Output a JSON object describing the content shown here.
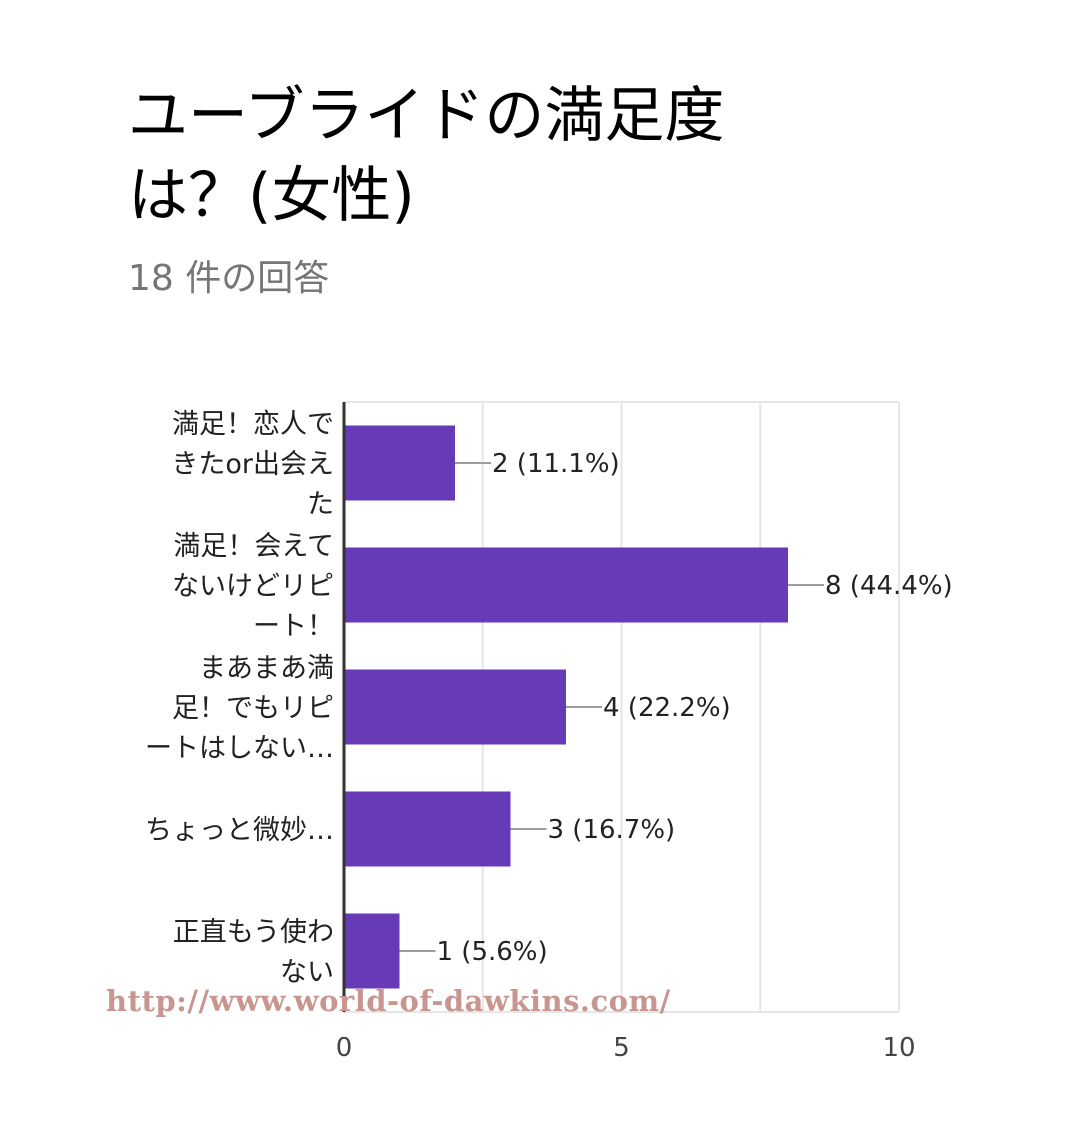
{
  "title": "ユーブライドの満足度\nは？(女性)",
  "subtitle": "18 件の回答",
  "watermark": "http://www.world-of-dawkins.com/",
  "colors": {
    "bar": "#673ab7",
    "grid": "#e6e6e6",
    "axis": "#333333",
    "leader": "#9e9e9e"
  },
  "chart_data": {
    "type": "bar",
    "orientation": "horizontal",
    "title": "ユーブライドの満足度は？(女性)",
    "categories": [
      [
        "満足！恋人で",
        "きたor出会え",
        "た"
      ],
      [
        "満足！会えて",
        "ないけどリピ",
        "ート！"
      ],
      [
        "まあまあ満",
        "足！でもリピ",
        "ートはしない…"
      ],
      [
        "ちょっと微妙…"
      ],
      [
        "正直もう使わ",
        "ない"
      ]
    ],
    "values": [
      2,
      8,
      4,
      3,
      1
    ],
    "value_labels": [
      "2 (11.1%)",
      "8 (44.4%)",
      "4 (22.2%)",
      "3 (16.7%)",
      "1 (5.6%)"
    ],
    "xlim": [
      0,
      10
    ],
    "xticks": [
      0,
      5,
      10
    ],
    "xtick_labels": [
      "0",
      "5",
      "10"
    ],
    "grid": true,
    "legend": "none"
  }
}
